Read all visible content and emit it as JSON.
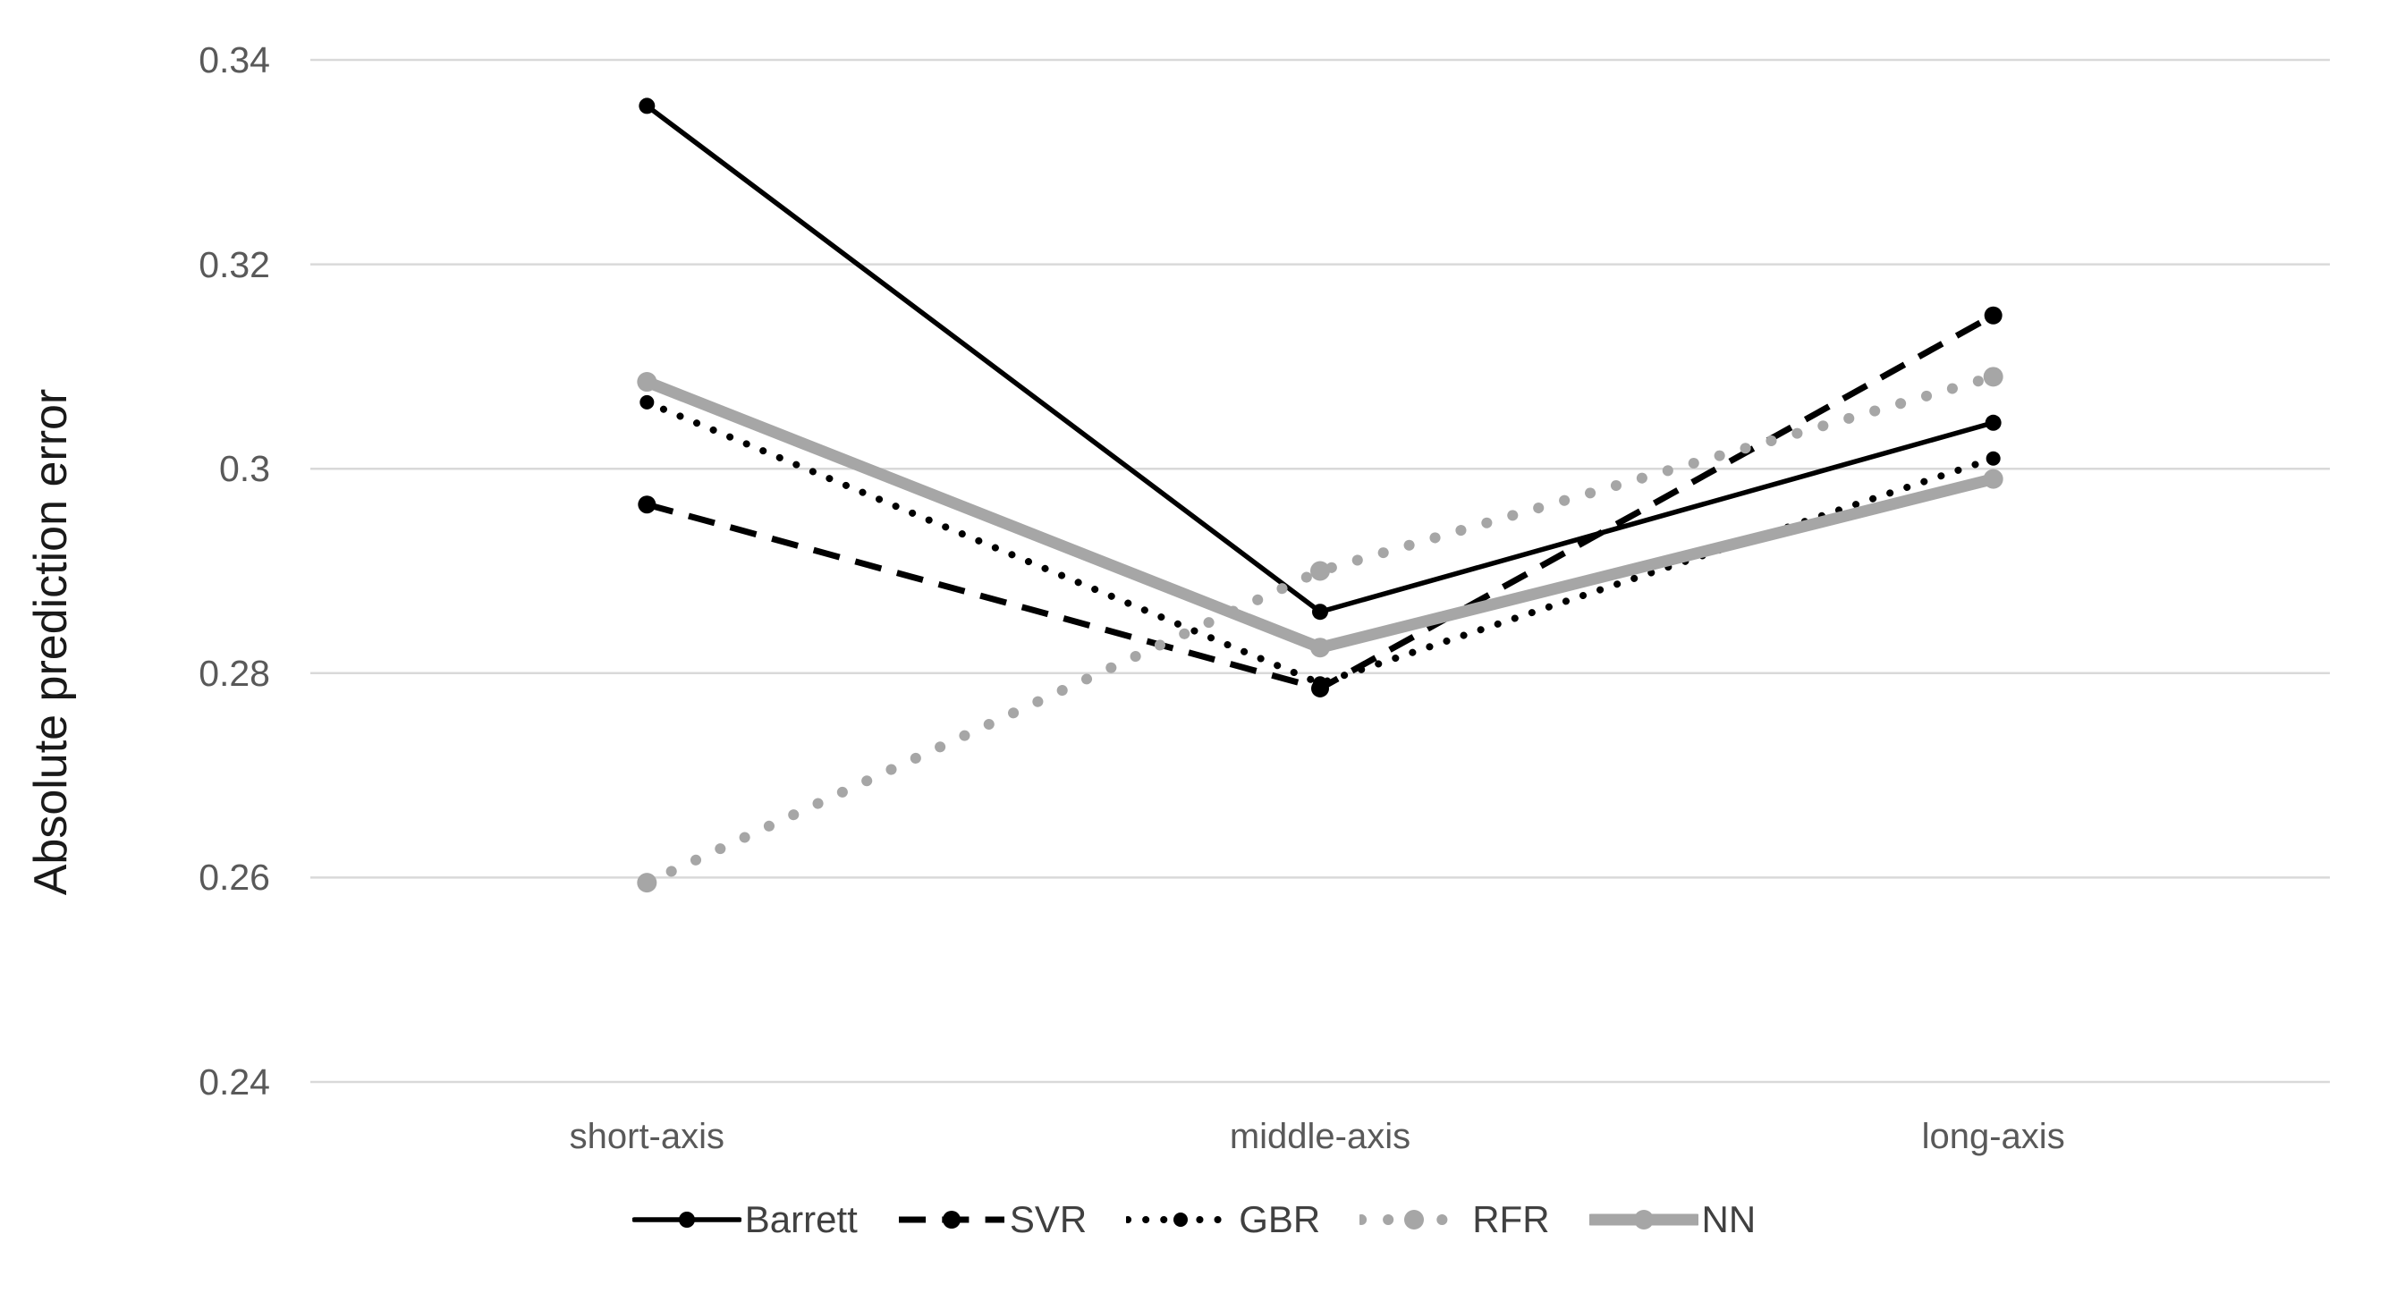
{
  "chart_data": {
    "type": "line",
    "title": "",
    "xlabel": "",
    "ylabel": "Absolute prediction error",
    "categories": [
      "short-axis",
      "middle-axis",
      "long-axis"
    ],
    "y_ticks": [
      "0.34",
      "0.32",
      "0.3",
      "0.28",
      "0.26",
      "0.24"
    ],
    "ylim": [
      0.24,
      0.34
    ],
    "grid": "horizontal-only",
    "legend_position": "bottom-center",
    "series": [
      {
        "name": "Barrett",
        "color": "#000000",
        "line_style": "solid",
        "line_width": 5.5,
        "marker": "circle",
        "marker_r": 9,
        "values": [
          0.3355,
          0.286,
          0.3045
        ]
      },
      {
        "name": "SVR",
        "color": "#000000",
        "line_style": "dashed",
        "line_width": 7,
        "marker": "circle",
        "marker_r": 10,
        "values": [
          0.2965,
          0.2785,
          0.315
        ]
      },
      {
        "name": "GBR",
        "color": "#000000",
        "line_style": "dotted",
        "line_width": 8,
        "marker": "circle",
        "marker_r": 8,
        "values": [
          0.3065,
          0.279,
          0.301
        ]
      },
      {
        "name": "RFR",
        "color": "#a6a6a6",
        "line_style": "dotted",
        "line_width": 12,
        "marker": "circle",
        "marker_r": 11,
        "values": [
          0.2595,
          0.29,
          0.309
        ]
      },
      {
        "name": "NN",
        "color": "#a6a6a6",
        "line_style": "solid",
        "line_width": 13,
        "marker": "circle",
        "marker_r": 11,
        "values": [
          0.3085,
          0.2825,
          0.299
        ]
      }
    ],
    "colors": {
      "gridline": "#d9d9d9",
      "tick_label": "#595959",
      "axis_title": "#1a1a1a",
      "legend_text": "#404040",
      "background": "#ffffff"
    }
  }
}
